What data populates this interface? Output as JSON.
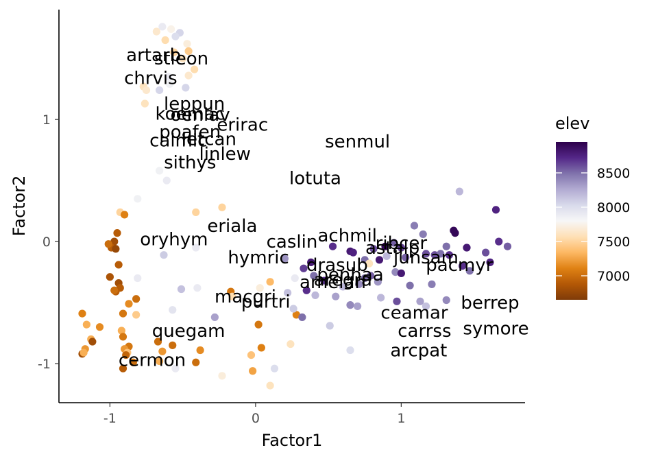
{
  "chart_data": {
    "type": "scatter",
    "xlabel": "Factor1",
    "ylabel": "Factor2",
    "xlim": [
      -1.35,
      1.85
    ],
    "ylim": [
      -1.32,
      1.9
    ],
    "xticks": [
      "-1",
      "0",
      "1"
    ],
    "yticks": [
      "-1",
      "0",
      "1"
    ],
    "xtick_values": [
      -1,
      0,
      1
    ],
    "ytick_values": [
      -1,
      0,
      1
    ],
    "grid": false,
    "legend": {
      "title": "elev",
      "placement": "right",
      "range": [
        6650,
        8950
      ],
      "labels": [
        "8500",
        "8000",
        "7500",
        "7000"
      ],
      "values": [
        8500,
        8000,
        7500,
        7000
      ],
      "palette": [
        "#7f3b08",
        "#b35806",
        "#e08214",
        "#fdb863",
        "#fee0b6",
        "#f7f7f7",
        "#d8daeb",
        "#b2abd2",
        "#8073ac",
        "#542788",
        "#2d004b"
      ]
    },
    "points": [
      {
        "x": -0.64,
        "y": 1.76,
        "elev": 7900
      },
      {
        "x": -0.58,
        "y": 1.74,
        "elev": 7750
      },
      {
        "x": -0.52,
        "y": 1.71,
        "elev": 8050
      },
      {
        "x": -0.68,
        "y": 1.72,
        "elev": 7650
      },
      {
        "x": -0.62,
        "y": 1.65,
        "elev": 7550
      },
      {
        "x": -0.55,
        "y": 1.68,
        "elev": 8000
      },
      {
        "x": -0.47,
        "y": 1.62,
        "elev": 7700
      },
      {
        "x": -0.56,
        "y": 1.55,
        "elev": 7500
      },
      {
        "x": -0.5,
        "y": 1.5,
        "elev": 7600
      },
      {
        "x": -0.46,
        "y": 1.56,
        "elev": 7450
      },
      {
        "x": -0.42,
        "y": 1.41,
        "elev": 7550
      },
      {
        "x": -0.46,
        "y": 1.36,
        "elev": 7650
      },
      {
        "x": -0.6,
        "y": 1.35,
        "elev": 7900
      },
      {
        "x": -0.59,
        "y": 1.29,
        "elev": 7850
      },
      {
        "x": -0.77,
        "y": 1.27,
        "elev": 7600
      },
      {
        "x": -0.75,
        "y": 1.24,
        "elev": 7650
      },
      {
        "x": -0.66,
        "y": 1.24,
        "elev": 8050
      },
      {
        "x": -0.48,
        "y": 1.26,
        "elev": 8050
      },
      {
        "x": -0.76,
        "y": 1.13,
        "elev": 7600
      },
      {
        "x": -0.66,
        "y": 0.58,
        "elev": 7850
      },
      {
        "x": -0.61,
        "y": 0.5,
        "elev": 7900
      },
      {
        "x": -0.81,
        "y": 0.35,
        "elev": 7850
      },
      {
        "x": -0.93,
        "y": 0.24,
        "elev": 7500
      },
      {
        "x": -0.9,
        "y": 0.22,
        "elev": 7100
      },
      {
        "x": -0.41,
        "y": 0.24,
        "elev": 7500
      },
      {
        "x": -0.23,
        "y": 0.28,
        "elev": 7500
      },
      {
        "x": -0.95,
        "y": 0.07,
        "elev": 6900
      },
      {
        "x": -0.97,
        "y": 0.0,
        "elev": 6800
      },
      {
        "x": -0.99,
        "y": -0.05,
        "elev": 6900
      },
      {
        "x": -1.01,
        "y": -0.02,
        "elev": 7000
      },
      {
        "x": -0.96,
        "y": -0.06,
        "elev": 6750
      },
      {
        "x": -0.94,
        "y": -0.19,
        "elev": 6900
      },
      {
        "x": -1.0,
        "y": -0.29,
        "elev": 6850
      },
      {
        "x": -0.94,
        "y": -0.34,
        "elev": 6800
      },
      {
        "x": -0.93,
        "y": -0.38,
        "elev": 6900
      },
      {
        "x": -0.96,
        "y": -0.41,
        "elev": 6900
      },
      {
        "x": -0.97,
        "y": -0.4,
        "elev": 7000
      },
      {
        "x": -0.82,
        "y": -0.47,
        "elev": 7000
      },
      {
        "x": -0.87,
        "y": -0.51,
        "elev": 7150
      },
      {
        "x": -0.91,
        "y": -0.59,
        "elev": 7050
      },
      {
        "x": -0.82,
        "y": -0.6,
        "elev": 7450
      },
      {
        "x": -0.81,
        "y": -0.3,
        "elev": 7900
      },
      {
        "x": -0.63,
        "y": -0.11,
        "elev": 8100
      },
      {
        "x": -0.41,
        "y": -0.05,
        "elev": 7900
      },
      {
        "x": -1.19,
        "y": -0.59,
        "elev": 7100
      },
      {
        "x": -1.16,
        "y": -0.68,
        "elev": 7300
      },
      {
        "x": -1.07,
        "y": -0.7,
        "elev": 7150
      },
      {
        "x": -1.13,
        "y": -0.8,
        "elev": 7300
      },
      {
        "x": -1.12,
        "y": -0.82,
        "elev": 6800
      },
      {
        "x": -1.17,
        "y": -0.88,
        "elev": 7200
      },
      {
        "x": -1.19,
        "y": -0.92,
        "elev": 6800
      },
      {
        "x": -1.18,
        "y": -0.91,
        "elev": 7300
      },
      {
        "x": -0.92,
        "y": -0.73,
        "elev": 7300
      },
      {
        "x": -0.91,
        "y": -0.78,
        "elev": 7050
      },
      {
        "x": -0.87,
        "y": -0.86,
        "elev": 7050
      },
      {
        "x": -0.9,
        "y": -0.88,
        "elev": 7200
      },
      {
        "x": -0.88,
        "y": -0.91,
        "elev": 7400
      },
      {
        "x": -0.89,
        "y": -0.93,
        "elev": 6950
      },
      {
        "x": -0.84,
        "y": -0.99,
        "elev": 7000
      },
      {
        "x": -0.91,
        "y": -1.04,
        "elev": 6900
      },
      {
        "x": -0.67,
        "y": -0.82,
        "elev": 7000
      },
      {
        "x": -0.64,
        "y": -0.9,
        "elev": 7200
      },
      {
        "x": -0.57,
        "y": -0.85,
        "elev": 7000
      },
      {
        "x": -0.66,
        "y": -0.98,
        "elev": 7300
      },
      {
        "x": -0.55,
        "y": -1.04,
        "elev": 7900
      },
      {
        "x": -0.41,
        "y": -0.99,
        "elev": 7000
      },
      {
        "x": -0.38,
        "y": -0.89,
        "elev": 7150
      },
      {
        "x": -0.57,
        "y": -0.56,
        "elev": 7950
      },
      {
        "x": -0.51,
        "y": -0.39,
        "elev": 8150
      },
      {
        "x": -0.4,
        "y": -0.38,
        "elev": 7900
      },
      {
        "x": -0.28,
        "y": -0.62,
        "elev": 8300
      },
      {
        "x": -0.17,
        "y": -0.41,
        "elev": 7050
      },
      {
        "x": -0.16,
        "y": -0.45,
        "elev": 7550
      },
      {
        "x": -0.23,
        "y": -1.1,
        "elev": 7700
      },
      {
        "x": -0.03,
        "y": -0.93,
        "elev": 7400
      },
      {
        "x": 0.02,
        "y": -0.68,
        "elev": 7050
      },
      {
        "x": 0.04,
        "y": -0.87,
        "elev": 7100
      },
      {
        "x": -0.02,
        "y": -1.06,
        "elev": 7250
      },
      {
        "x": 0.1,
        "y": -1.18,
        "elev": 7600
      },
      {
        "x": 0.13,
        "y": -1.04,
        "elev": 8000
      },
      {
        "x": 0.03,
        "y": -0.38,
        "elev": 7700
      },
      {
        "x": 0.1,
        "y": -0.33,
        "elev": 7350
      },
      {
        "x": 0.24,
        "y": -0.84,
        "elev": 7600
      },
      {
        "x": 0.28,
        "y": -0.6,
        "elev": 7100
      },
      {
        "x": 0.26,
        "y": -0.55,
        "elev": 8100
      },
      {
        "x": 0.32,
        "y": -0.62,
        "elev": 8500
      },
      {
        "x": 0.27,
        "y": -0.3,
        "elev": 7900
      },
      {
        "x": 0.2,
        "y": -0.14,
        "elev": 8350
      },
      {
        "x": 0.22,
        "y": -0.42,
        "elev": 8150
      },
      {
        "x": 0.35,
        "y": -0.4,
        "elev": 8700
      },
      {
        "x": 0.51,
        "y": -0.69,
        "elev": 8100
      },
      {
        "x": 0.65,
        "y": -0.89,
        "elev": 8000
      },
      {
        "x": 0.53,
        "y": -0.04,
        "elev": 8700
      },
      {
        "x": 0.65,
        "y": -0.08,
        "elev": 8800
      },
      {
        "x": 0.67,
        "y": -0.09,
        "elev": 8750
      },
      {
        "x": 0.75,
        "y": -0.15,
        "elev": 8500
      },
      {
        "x": 0.78,
        "y": -0.18,
        "elev": 7600
      },
      {
        "x": 0.85,
        "y": -0.15,
        "elev": 8800
      },
      {
        "x": 0.81,
        "y": -0.06,
        "elev": 8600
      },
      {
        "x": 0.89,
        "y": -0.04,
        "elev": 8900
      },
      {
        "x": 0.95,
        "y": -0.01,
        "elev": 8550
      },
      {
        "x": 1.0,
        "y": -0.05,
        "elev": 8650
      },
      {
        "x": 0.96,
        "y": -0.25,
        "elev": 8400
      },
      {
        "x": 1.0,
        "y": -0.26,
        "elev": 8800
      },
      {
        "x": 1.03,
        "y": -0.13,
        "elev": 8550
      },
      {
        "x": 1.06,
        "y": -0.36,
        "elev": 8500
      },
      {
        "x": 1.09,
        "y": 0.13,
        "elev": 8450
      },
      {
        "x": 1.15,
        "y": 0.06,
        "elev": 8450
      },
      {
        "x": 1.17,
        "y": -0.1,
        "elev": 8600
      },
      {
        "x": 1.21,
        "y": -0.35,
        "elev": 8450
      },
      {
        "x": 1.23,
        "y": -0.11,
        "elev": 8600
      },
      {
        "x": 1.27,
        "y": -0.1,
        "elev": 8500
      },
      {
        "x": 1.31,
        "y": -0.04,
        "elev": 8500
      },
      {
        "x": 1.33,
        "y": -0.11,
        "elev": 8700
      },
      {
        "x": 1.36,
        "y": 0.09,
        "elev": 8900
      },
      {
        "x": 1.37,
        "y": 0.07,
        "elev": 8900
      },
      {
        "x": 1.4,
        "y": 0.41,
        "elev": 8200
      },
      {
        "x": 1.45,
        "y": -0.05,
        "elev": 8800
      },
      {
        "x": 1.47,
        "y": -0.24,
        "elev": 8500
      },
      {
        "x": 1.42,
        "y": -0.2,
        "elev": 8700
      },
      {
        "x": 1.58,
        "y": -0.09,
        "elev": 8600
      },
      {
        "x": 1.61,
        "y": -0.17,
        "elev": 8750
      },
      {
        "x": 1.65,
        "y": 0.26,
        "elev": 8750
      },
      {
        "x": 1.67,
        "y": 0.0,
        "elev": 8700
      },
      {
        "x": 1.73,
        "y": -0.04,
        "elev": 8550
      },
      {
        "x": 0.55,
        "y": -0.45,
        "elev": 8300
      },
      {
        "x": 0.65,
        "y": -0.52,
        "elev": 8400
      },
      {
        "x": 0.7,
        "y": -0.53,
        "elev": 8300
      },
      {
        "x": 0.6,
        "y": -0.37,
        "elev": 8200
      },
      {
        "x": 0.71,
        "y": -0.35,
        "elev": 8400
      },
      {
        "x": 0.75,
        "y": -0.3,
        "elev": 8500
      },
      {
        "x": 0.79,
        "y": -0.28,
        "elev": 8550
      },
      {
        "x": 0.84,
        "y": -0.33,
        "elev": 8350
      },
      {
        "x": 0.86,
        "y": -0.46,
        "elev": 8200
      },
      {
        "x": 0.97,
        "y": -0.49,
        "elev": 8600
      },
      {
        "x": 1.13,
        "y": -0.49,
        "elev": 8300
      },
      {
        "x": 1.17,
        "y": -0.53,
        "elev": 8150
      },
      {
        "x": 1.31,
        "y": -0.48,
        "elev": 8400
      },
      {
        "x": 0.47,
        "y": -0.32,
        "elev": 8700
      },
      {
        "x": 0.4,
        "y": -0.28,
        "elev": 8500
      },
      {
        "x": 0.9,
        "y": -0.12,
        "elev": 8200
      },
      {
        "x": 0.33,
        "y": -0.22,
        "elev": 8650
      },
      {
        "x": 0.38,
        "y": -0.17,
        "elev": 8800
      },
      {
        "x": 0.41,
        "y": -0.44,
        "elev": 8200
      }
    ],
    "labels": [
      {
        "text": "artarb",
        "x": -0.7,
        "y": 1.53
      },
      {
        "text": "stleon",
        "x": -0.51,
        "y": 1.5
      },
      {
        "text": "chrvis",
        "x": -0.72,
        "y": 1.34
      },
      {
        "text": "leppun",
        "x": -0.42,
        "y": 1.13
      },
      {
        "text": "koemac",
        "x": -0.45,
        "y": 1.05
      },
      {
        "text": "oenlav",
        "x": -0.38,
        "y": 1.04
      },
      {
        "text": "erirac",
        "x": -0.09,
        "y": 0.96
      },
      {
        "text": "poafen",
        "x": -0.45,
        "y": 0.9
      },
      {
        "text": "calmic",
        "x": -0.53,
        "y": 0.83
      },
      {
        "text": "letcan",
        "x": -0.32,
        "y": 0.84
      },
      {
        "text": "linlew",
        "x": -0.21,
        "y": 0.72
      },
      {
        "text": "sithys",
        "x": -0.45,
        "y": 0.65
      },
      {
        "text": "senmul",
        "x": 0.7,
        "y": 0.82
      },
      {
        "text": "lotuta",
        "x": 0.41,
        "y": 0.52
      },
      {
        "text": "eriala",
        "x": -0.16,
        "y": 0.13
      },
      {
        "text": "oryhym",
        "x": -0.56,
        "y": 0.02
      },
      {
        "text": "caslin",
        "x": 0.25,
        "y": 0.0
      },
      {
        "text": "achmil",
        "x": 0.63,
        "y": 0.05
      },
      {
        "text": "ribcer",
        "x": 1.0,
        "y": -0.01
      },
      {
        "text": "astalp",
        "x": 0.94,
        "y": -0.05
      },
      {
        "text": "hymric",
        "x": 0.02,
        "y": -0.13
      },
      {
        "text": "junsam",
        "x": 1.17,
        "y": -0.13
      },
      {
        "text": "drasub",
        "x": 0.56,
        "y": -0.19
      },
      {
        "text": "pacmyr",
        "x": 1.4,
        "y": -0.19
      },
      {
        "text": "penhaa",
        "x": 0.65,
        "y": -0.27
      },
      {
        "text": "aregra",
        "x": 0.6,
        "y": -0.31
      },
      {
        "text": "amelan",
        "x": 0.53,
        "y": -0.33
      },
      {
        "text": "macgri",
        "x": -0.07,
        "y": -0.45
      },
      {
        "text": "purtri",
        "x": 0.07,
        "y": -0.49
      },
      {
        "text": "berrep",
        "x": 1.61,
        "y": -0.5
      },
      {
        "text": "ceamar",
        "x": 1.09,
        "y": -0.58
      },
      {
        "text": "symore",
        "x": 1.65,
        "y": -0.71
      },
      {
        "text": "carrss",
        "x": 1.16,
        "y": -0.73
      },
      {
        "text": "quegam",
        "x": -0.46,
        "y": -0.73
      },
      {
        "text": "arcpat",
        "x": 1.12,
        "y": -0.89
      },
      {
        "text": "cermon",
        "x": -0.71,
        "y": -0.97
      }
    ]
  }
}
